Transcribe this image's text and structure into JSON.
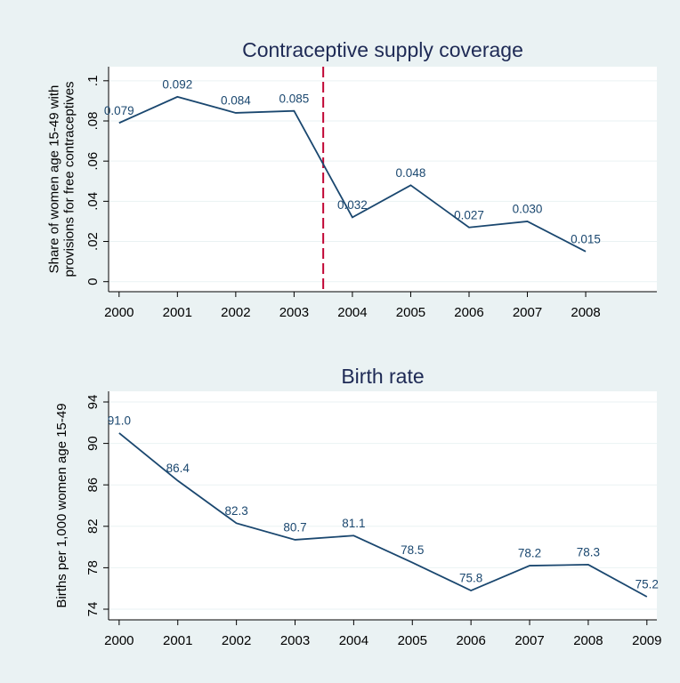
{
  "chart_data": [
    {
      "type": "line",
      "title": "Contraceptive supply coverage",
      "y_label": [
        "Share of women age 15-49 with",
        "provisions for free contraceptives"
      ],
      "x": [
        2000,
        2001,
        2002,
        2003,
        2004,
        2005,
        2006,
        2007,
        2008
      ],
      "series": [
        {
          "color": "#1a476f",
          "values": [
            0.079,
            0.092,
            0.084,
            0.085,
            0.032,
            0.048,
            0.027,
            0.03,
            0.015
          ],
          "value_labels": [
            "0.079",
            "0.092",
            "0.084",
            "0.085",
            "0.032",
            "0.048",
            "0.027",
            "0.030",
            "0.015"
          ]
        }
      ],
      "xlim": [
        1999.82,
        2009.22
      ],
      "xticks": [
        2000,
        2001,
        2002,
        2003,
        2004,
        2005,
        2006,
        2007,
        2008
      ],
      "ylim": [
        -0.005,
        0.107
      ],
      "yticks": [
        0,
        {
          "value": 0.02,
          "label": ".02"
        },
        {
          "value": 0.04,
          "label": ".04"
        },
        {
          "value": 0.06,
          "label": ".06"
        },
        {
          "value": 0.08,
          "label": ".08"
        },
        {
          "value": 0.1,
          "label": ".1"
        }
      ],
      "vline": {
        "x": 2003.5,
        "color": "#c10534"
      },
      "grid": true
    },
    {
      "type": "line",
      "title": "Birth rate",
      "y_label": [
        "Births per 1,000 women age 15-49"
      ],
      "x": [
        2000,
        2001,
        2002,
        2003,
        2004,
        2005,
        2006,
        2007,
        2008,
        2009
      ],
      "series": [
        {
          "color": "#1a476f",
          "values": [
            91.0,
            86.4,
            82.3,
            80.7,
            81.1,
            78.5,
            75.8,
            78.2,
            78.3,
            75.2
          ],
          "value_labels": [
            "91.0",
            "86.4",
            "82.3",
            "80.7",
            "81.1",
            "78.5",
            "75.8",
            "78.2",
            "78.3",
            "75.2"
          ]
        }
      ],
      "xlim": [
        1999.82,
        2009.17
      ],
      "xticks": [
        2000,
        2001,
        2002,
        2003,
        2004,
        2005,
        2006,
        2007,
        2008,
        2009
      ],
      "ylim": [
        72.97,
        95.03
      ],
      "yticks": [
        74,
        78,
        82,
        86,
        90,
        94
      ],
      "grid": true
    }
  ]
}
